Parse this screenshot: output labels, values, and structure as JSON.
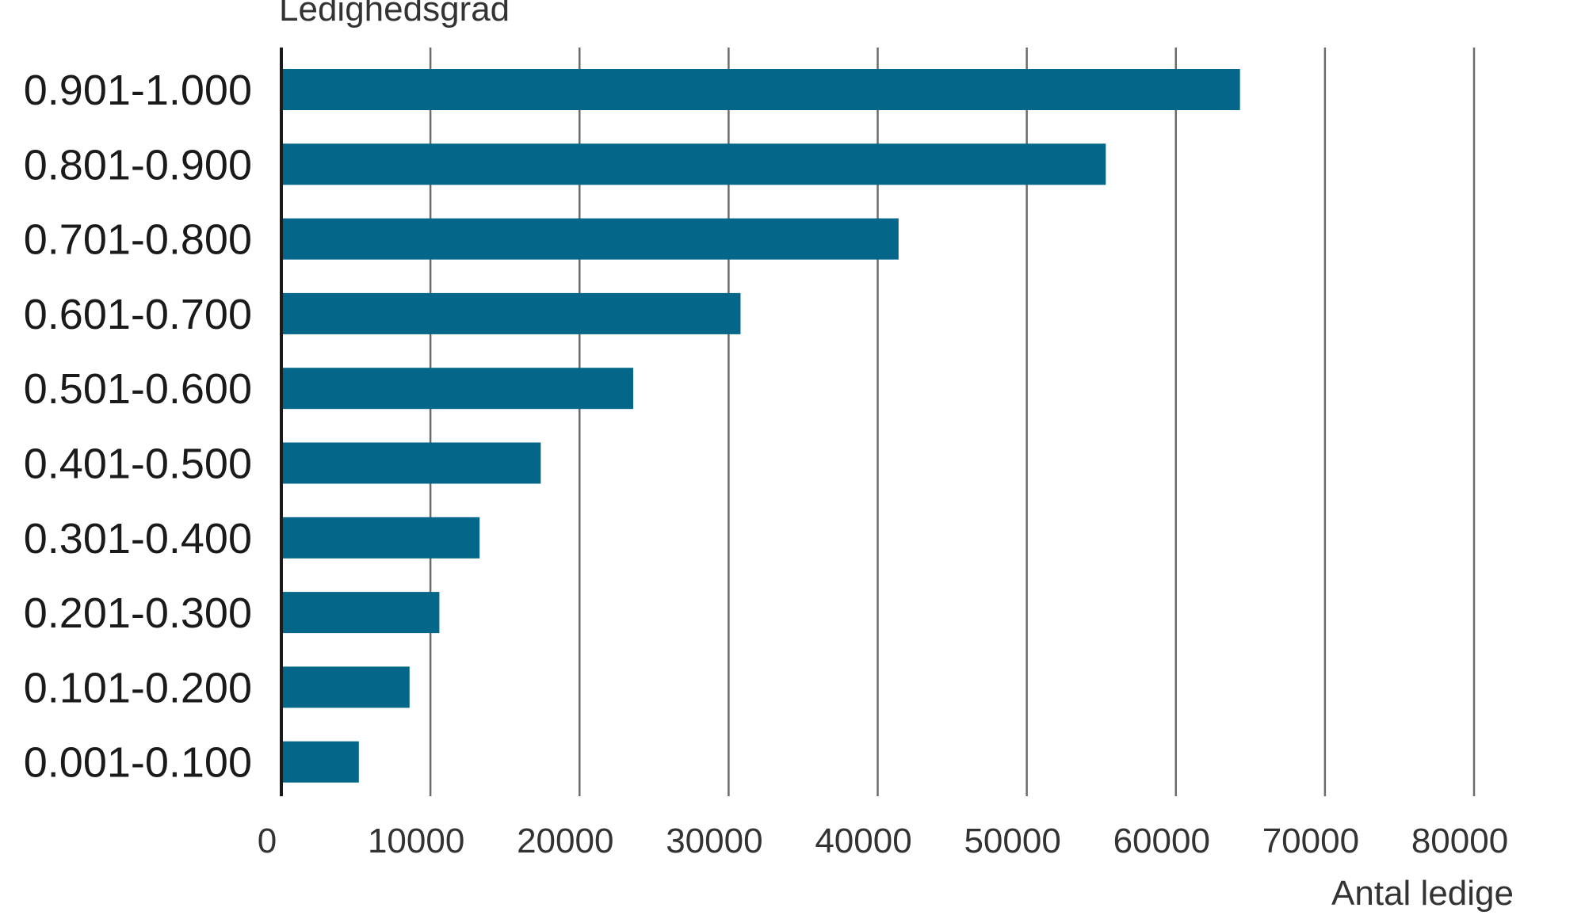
{
  "chart_data": {
    "type": "bar",
    "orientation": "horizontal",
    "ylabel": "Ledighedsgrad",
    "xlabel": "Antal ledige",
    "categories": [
      "0.901-1.000",
      "0.801-0.900",
      "0.701-0.800",
      "0.601-0.700",
      "0.501-0.600",
      "0.401-0.500",
      "0.301-0.400",
      "0.201-0.300",
      "0.101-0.200",
      "0.001-0.100"
    ],
    "values": [
      64300,
      55300,
      41400,
      30800,
      23600,
      17400,
      13300,
      10600,
      8600,
      5200
    ],
    "xlim": [
      0,
      80000
    ],
    "xticks": [
      "0",
      "10000",
      "20000",
      "30000",
      "40000",
      "50000",
      "60000",
      "70000",
      "80000"
    ],
    "grid": "vertical",
    "bar_color": "#04678a",
    "gridline_color": "#6b6b6b",
    "axis_color": "#1a1a1a"
  }
}
